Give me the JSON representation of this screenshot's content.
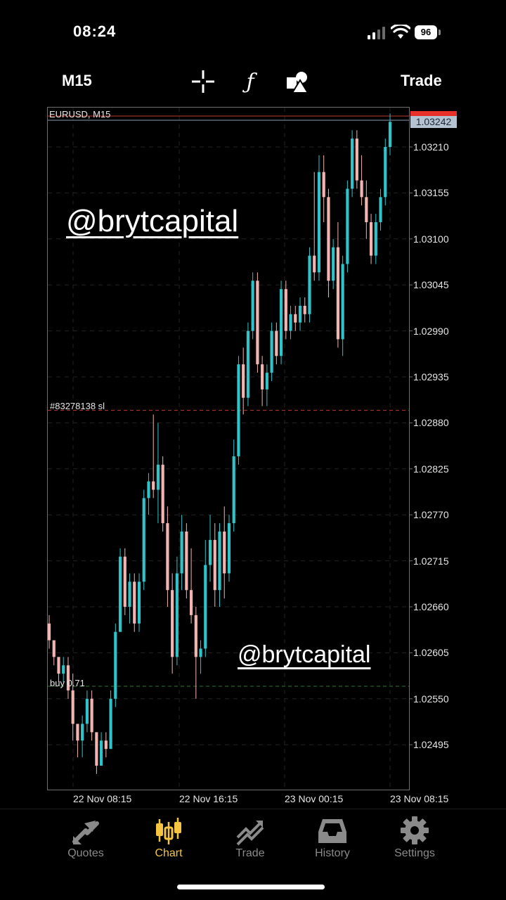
{
  "status": {
    "time": "08:24",
    "battery": "96"
  },
  "toolbar": {
    "timeframe": "M15",
    "trade_label": "Trade",
    "icons": [
      "crosshair-icon",
      "function-icon",
      "objects-icon"
    ]
  },
  "chart": {
    "title": "EURUSD, M15",
    "current_price": "1.03242",
    "order_sl_label": "#83278138 sl",
    "order_buy_label": "buy 0.71",
    "watermark": "@brytcapital",
    "colors": {
      "bull": "#2ec4c9",
      "bear": "#f3b5b2",
      "background": "#000000",
      "sl_line": "#c0392b",
      "buy_line": "#2e7d32"
    }
  },
  "chart_data": {
    "type": "candlestick",
    "title": "EURUSD, M15",
    "yticks": [
      "1.03210",
      "1.03155",
      "1.03100",
      "1.03045",
      "1.02990",
      "1.02935",
      "1.02880",
      "1.02825",
      "1.02770",
      "1.02715",
      "1.02660",
      "1.02605",
      "1.02550",
      "1.02495"
    ],
    "xticks": [
      "22 Nov 08:15",
      "22 Nov 16:15",
      "23 Nov 00:15",
      "23 Nov 08:15"
    ],
    "ylim": [
      1.0245,
      1.0325
    ],
    "grid": true,
    "current_price": 1.03242,
    "stop_loss_level": 1.02895,
    "buy_level": 1.02565,
    "candles": [
      [
        1.0264,
        1.0265,
        1.0261,
        1.0262
      ],
      [
        1.0262,
        1.0262,
        1.0259,
        1.026
      ],
      [
        1.026,
        1.026,
        1.0257,
        1.0258
      ],
      [
        1.0258,
        1.026,
        1.0257,
        1.0259
      ],
      [
        1.0259,
        1.026,
        1.0255,
        1.0256
      ],
      [
        1.0256,
        1.0258,
        1.025,
        1.0252
      ],
      [
        1.0252,
        1.0252,
        1.0248,
        1.025
      ],
      [
        1.025,
        1.0253,
        1.0248,
        1.0252
      ],
      [
        1.0252,
        1.0256,
        1.0251,
        1.0255
      ],
      [
        1.0255,
        1.0256,
        1.025,
        1.0251
      ],
      [
        1.0251,
        1.0251,
        1.0246,
        1.0247
      ],
      [
        1.0247,
        1.0251,
        1.0247,
        1.025
      ],
      [
        1.025,
        1.0251,
        1.0248,
        1.0249
      ],
      [
        1.0249,
        1.0256,
        1.0249,
        1.0255
      ],
      [
        1.0255,
        1.0264,
        1.0254,
        1.0263
      ],
      [
        1.0263,
        1.0273,
        1.0263,
        1.0272
      ],
      [
        1.0272,
        1.0273,
        1.0265,
        1.0266
      ],
      [
        1.0266,
        1.027,
        1.0264,
        1.0269
      ],
      [
        1.0269,
        1.027,
        1.0263,
        1.0264
      ],
      [
        1.0264,
        1.027,
        1.0263,
        1.0269
      ],
      [
        1.0269,
        1.028,
        1.0268,
        1.0279
      ],
      [
        1.0279,
        1.0282,
        1.0277,
        1.0281
      ],
      [
        1.0281,
        1.0289,
        1.0279,
        1.028
      ],
      [
        1.028,
        1.0288,
        1.0276,
        1.0283
      ],
      [
        1.0283,
        1.0284,
        1.0275,
        1.0276
      ],
      [
        1.0276,
        1.0278,
        1.0266,
        1.0268
      ],
      [
        1.0268,
        1.027,
        1.0258,
        1.026
      ],
      [
        1.026,
        1.0272,
        1.0259,
        1.027
      ],
      [
        1.027,
        1.0277,
        1.0268,
        1.0275
      ],
      [
        1.0275,
        1.0276,
        1.0267,
        1.0268
      ],
      [
        1.0268,
        1.0273,
        1.0264,
        1.0265
      ],
      [
        1.0265,
        1.0266,
        1.0255,
        1.026
      ],
      [
        1.026,
        1.0262,
        1.0258,
        1.0261
      ],
      [
        1.0261,
        1.0274,
        1.026,
        1.0271
      ],
      [
        1.0271,
        1.0277,
        1.0269,
        1.0274
      ],
      [
        1.0274,
        1.0276,
        1.0266,
        1.0268
      ],
      [
        1.0268,
        1.0276,
        1.0266,
        1.0275
      ],
      [
        1.0275,
        1.0278,
        1.0267,
        1.027
      ],
      [
        1.027,
        1.0277,
        1.0269,
        1.0276
      ],
      [
        1.0276,
        1.0286,
        1.0275,
        1.0284
      ],
      [
        1.0284,
        1.0296,
        1.0283,
        1.0295
      ],
      [
        1.0295,
        1.0297,
        1.0289,
        1.0291
      ],
      [
        1.0291,
        1.03,
        1.029,
        1.0299
      ],
      [
        1.0299,
        1.0306,
        1.0298,
        1.0305
      ],
      [
        1.0305,
        1.0306,
        1.0294,
        1.0295
      ],
      [
        1.0295,
        1.0296,
        1.029,
        1.0292
      ],
      [
        1.0292,
        1.0295,
        1.029,
        1.0294
      ],
      [
        1.0294,
        1.03,
        1.0293,
        1.0299
      ],
      [
        1.0299,
        1.03,
        1.0295,
        1.0296
      ],
      [
        1.0296,
        1.0305,
        1.0295,
        1.0304
      ],
      [
        1.0304,
        1.0305,
        1.0298,
        1.0299
      ],
      [
        1.0299,
        1.0302,
        1.0298,
        1.0301
      ],
      [
        1.0301,
        1.0302,
        1.0299,
        1.03
      ],
      [
        1.03,
        1.0303,
        1.0299,
        1.0302
      ],
      [
        1.0302,
        1.0303,
        1.03,
        1.0301
      ],
      [
        1.0301,
        1.0309,
        1.03,
        1.0308
      ],
      [
        1.0308,
        1.0318,
        1.0305,
        1.0306
      ],
      [
        1.0306,
        1.032,
        1.0305,
        1.0318
      ],
      [
        1.0318,
        1.032,
        1.0312,
        1.0315
      ],
      [
        1.0315,
        1.0316,
        1.0303,
        1.0305
      ],
      [
        1.0305,
        1.031,
        1.0304,
        1.0309
      ],
      [
        1.0309,
        1.0312,
        1.0297,
        1.0298
      ],
      [
        1.0298,
        1.0308,
        1.0296,
        1.0307
      ],
      [
        1.0307,
        1.0317,
        1.0306,
        1.0316
      ],
      [
        1.0316,
        1.0323,
        1.0315,
        1.0322
      ],
      [
        1.0322,
        1.0323,
        1.0316,
        1.0317
      ],
      [
        1.0317,
        1.032,
        1.0314,
        1.0315
      ],
      [
        1.0315,
        1.0317,
        1.031,
        1.0312
      ],
      [
        1.0312,
        1.0313,
        1.0307,
        1.0308
      ],
      [
        1.0308,
        1.0313,
        1.0307,
        1.0312
      ],
      [
        1.0312,
        1.0316,
        1.0311,
        1.0315
      ],
      [
        1.0315,
        1.0322,
        1.0314,
        1.0321
      ],
      [
        1.0321,
        1.0325,
        1.032,
        1.0324
      ]
    ]
  },
  "tabs": [
    {
      "label": "Quotes",
      "icon": "quotes-arrows-icon"
    },
    {
      "label": "Chart",
      "icon": "candlestick-chart-icon"
    },
    {
      "label": "Trade",
      "icon": "trade-trend-icon"
    },
    {
      "label": "History",
      "icon": "inbox-history-icon"
    },
    {
      "label": "Settings",
      "icon": "gear-icon"
    }
  ]
}
